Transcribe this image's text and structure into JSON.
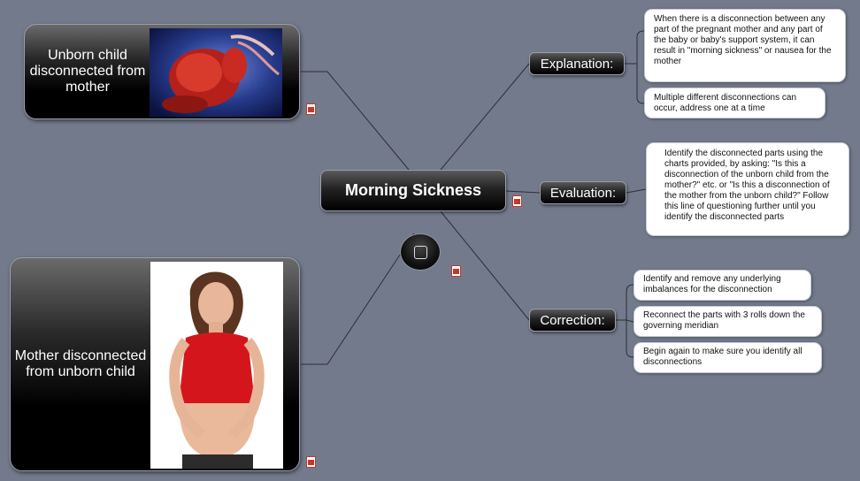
{
  "central": {
    "title": "Morning Sickness"
  },
  "branches": {
    "explanation": {
      "label": "Explanation:",
      "notes": [
        "When there is a disconnection between any part of the pregnant mother and any part of the baby or baby's support system, it can result in \"morning sickness\" or nausea for the mother",
        "Multiple different disconnections can occur, address one at a time"
      ]
    },
    "evaluation": {
      "label": "Evaluation:",
      "notes": [
        "Identify the disconnected parts using the charts provided, by asking: \"Is this a disconnection of the unborn child from the mother?\" etc. or \"Is this a disconnection of the mother from the unborn child?\" Follow this line of questioning further until you identify the disconnected parts"
      ]
    },
    "correction": {
      "label": "Correction:",
      "notes": [
        "Identify and remove any underlying imbalances for the disconnection",
        "Reconnect the parts with 3 rolls down the governing meridian",
        "Begin again to make sure you identify all disconnections"
      ]
    }
  },
  "cards": {
    "unborn": {
      "label": "Unborn child disconnected from mother"
    },
    "mother": {
      "label": "Mother disconnected from unborn child"
    }
  },
  "colors": {
    "background": "#737a8b",
    "connector": "#2b2f37"
  }
}
